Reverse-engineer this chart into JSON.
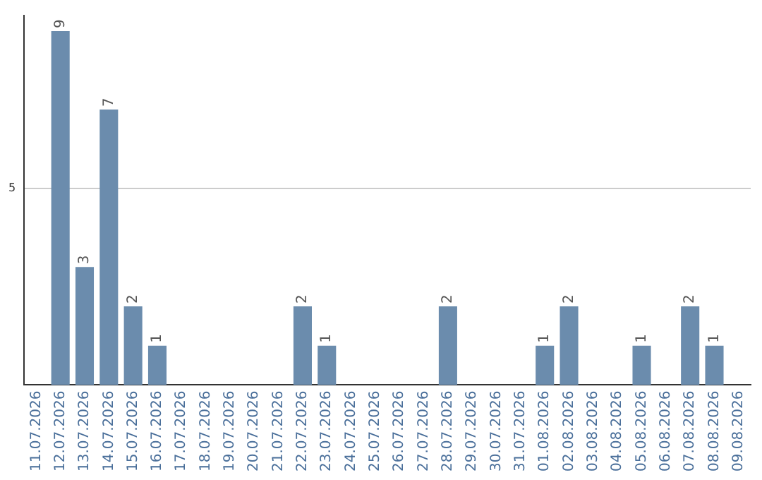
{
  "chart_data": {
    "type": "bar",
    "categories": [
      "11.07.2026",
      "12.07.2026",
      "13.07.2026",
      "14.07.2026",
      "15.07.2026",
      "16.07.2026",
      "17.07.2026",
      "18.07.2026",
      "19.07.2026",
      "20.07.2026",
      "21.07.2026",
      "22.07.2026",
      "23.07.2026",
      "24.07.2026",
      "25.07.2026",
      "26.07.2026",
      "27.07.2026",
      "28.07.2026",
      "29.07.2026",
      "30.07.2026",
      "31.07.2026",
      "01.08.2026",
      "02.08.2026",
      "03.08.2026",
      "04.08.2026",
      "05.08.2026",
      "06.08.2026",
      "07.08.2026",
      "08.08.2026",
      "09.08.2026"
    ],
    "values": [
      0,
      9,
      3,
      7,
      2,
      1,
      0,
      0,
      0,
      0,
      0,
      2,
      1,
      0,
      0,
      0,
      0,
      2,
      0,
      0,
      0,
      1,
      2,
      0,
      0,
      1,
      0,
      2,
      1,
      0
    ],
    "value_labels": [
      null,
      "9",
      "3",
      "7",
      "2",
      "1",
      null,
      null,
      null,
      null,
      null,
      "2",
      "1",
      null,
      null,
      null,
      null,
      "2",
      null,
      null,
      null,
      "1",
      "2",
      null,
      null,
      "1",
      null,
      "2",
      "1",
      null
    ],
    "color": "#6b8cad",
    "ylim": [
      0,
      9.4
    ],
    "yticks": [
      5
    ],
    "grid": "y",
    "legend": false
  }
}
